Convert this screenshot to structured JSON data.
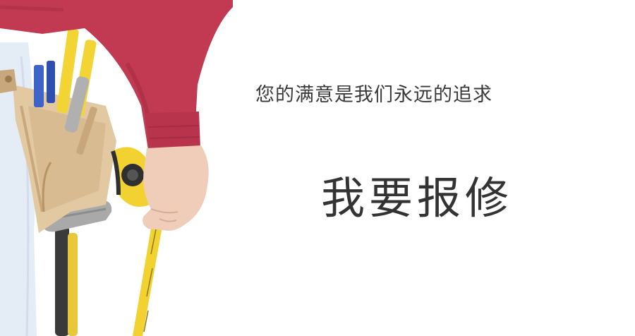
{
  "banner": {
    "tagline": "您的满意是我们永远的追求",
    "cta_label": "我要报修"
  },
  "illustration": {
    "subject": "workman-with-tool-belt",
    "colors": {
      "sleeve": "#c23a52",
      "sleeve_shadow": "#a52c44",
      "skin": "#f0cdb8",
      "tool_belt": "#e2c9a2",
      "tool_belt_dark": "#c8a77c",
      "jeans": "#e4ecf6",
      "tape_yellow": "#f2d231",
      "tape_black": "#2f2f2f",
      "pencil_yellow": "#f2d535",
      "screwdriver_blue": "#3f64c9"
    }
  }
}
